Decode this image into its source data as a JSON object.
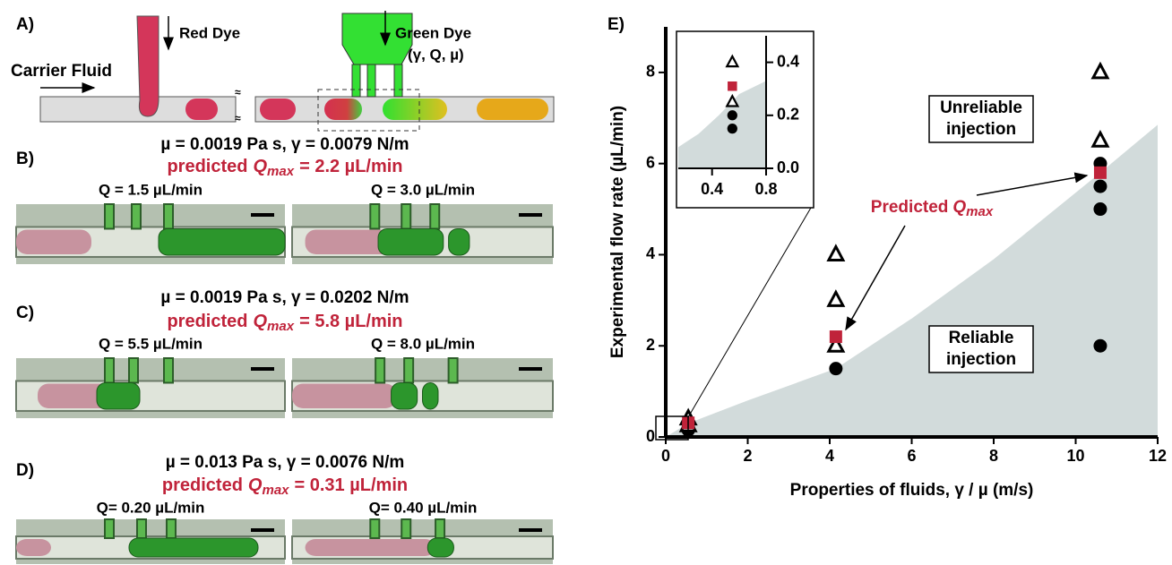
{
  "panels": {
    "A": {
      "label": "A)",
      "red_dye": "Red Dye",
      "green_dye": "Green Dye",
      "green_params": "(γ, Q, µ)",
      "carrier": "Carrier Fluid"
    },
    "B": {
      "label": "B)",
      "conditions": "µ = 0.0019 Pa s, γ = 0.0079 N/m",
      "predicted": {
        "prefix": "predicted",
        "symbol": "Q",
        "subscript": "max",
        "value": "= 2.2 µL/min"
      },
      "images": [
        "Q = 1.5 µL/min",
        "Q = 3.0 µL/min"
      ]
    },
    "C": {
      "label": "C)",
      "conditions": "µ = 0.0019 Pa s,  γ = 0.0202 N/m",
      "predicted": {
        "prefix": "predicted",
        "symbol": "Q",
        "subscript": "max",
        "value": "= 5.8 µL/min"
      },
      "images": [
        "Q = 5.5 µL/min",
        "Q = 8.0 µL/min"
      ]
    },
    "D": {
      "label": "D)",
      "conditions": "µ = 0.013 Pa s,  γ = 0.0076 N/m",
      "predicted": {
        "prefix": "predicted",
        "symbol": "Q",
        "subscript": "max",
        "value": "= 0.31 µL/min"
      },
      "images": [
        "Q= 0.20 µL/min",
        "Q= 0.40 µL/min"
      ]
    }
  },
  "chart_data": [
    {
      "type": "scatter",
      "label": "E)",
      "x_label": "Properties of fluids, γ / µ (m/s)",
      "y_label": "Experimental flow rate (µL/min)",
      "xlim": [
        0,
        12
      ],
      "ylim": [
        0,
        9
      ],
      "xticks": [
        0,
        2,
        4,
        6,
        8,
        10,
        12
      ],
      "yticks": [
        0,
        2,
        4,
        6,
        8
      ],
      "series": [
        {
          "type": "area",
          "color": "#d2dbdb",
          "x": [
            0,
            0.55,
            2,
            4.15,
            6,
            8,
            10.6,
            12
          ],
          "values": [
            0,
            0.3,
            0.8,
            1.5,
            2.6,
            3.9,
            5.8,
            6.85
          ]
        },
        {
          "marker": "circle",
          "color": "#000000",
          "x": [
            0.55,
            0.55,
            4.15,
            10.6,
            10.6,
            10.6,
            10.6
          ],
          "values": [
            0.15,
            0.2,
            1.5,
            2.0,
            5.0,
            5.5,
            6.0
          ]
        },
        {
          "marker": "triangle",
          "color": "#000000",
          "x": [
            0.55,
            0.55,
            4.15,
            4.15,
            4.15,
            10.6,
            10.6
          ],
          "values": [
            0.25,
            0.4,
            2.0,
            3.0,
            4.0,
            6.5,
            8.0
          ]
        },
        {
          "marker": "square",
          "color": "#c0233a",
          "x": [
            0.55,
            4.15,
            10.6
          ],
          "values": [
            0.31,
            2.2,
            5.8
          ]
        }
      ],
      "annotations": [
        {
          "lines": [
            "Unreliable",
            "injection"
          ]
        },
        {
          "lines": [
            "Reliable",
            "injection"
          ]
        },
        {
          "prefix": "Predicted",
          "symbol": "Q",
          "subscript": "max",
          "color": "#c0233a"
        }
      ]
    },
    {
      "type": "scatter",
      "xlim": [
        0.15,
        0.8
      ],
      "ylim": [
        0,
        0.5
      ],
      "xticks": [
        0.4,
        0.8
      ],
      "yticks": [
        {
          "value": 0,
          "label": "0.0"
        },
        0.2,
        0.4
      ],
      "series": [
        {
          "type": "area",
          "color": "#d2dbdb",
          "x": [
            0.15,
            0.3,
            0.45,
            0.6,
            0.8
          ],
          "values": [
            0.08,
            0.13,
            0.2,
            0.28,
            0.33
          ]
        },
        {
          "marker": "circle",
          "color": "#000000",
          "x": [
            0.55,
            0.55
          ],
          "values": [
            0.15,
            0.2
          ]
        },
        {
          "marker": "triangle",
          "color": "#000000",
          "x": [
            0.55,
            0.55
          ],
          "values": [
            0.25,
            0.4
          ]
        },
        {
          "marker": "square",
          "color": "#c0233a",
          "x": [
            0.55
          ],
          "values": [
            0.31
          ]
        }
      ]
    }
  ]
}
